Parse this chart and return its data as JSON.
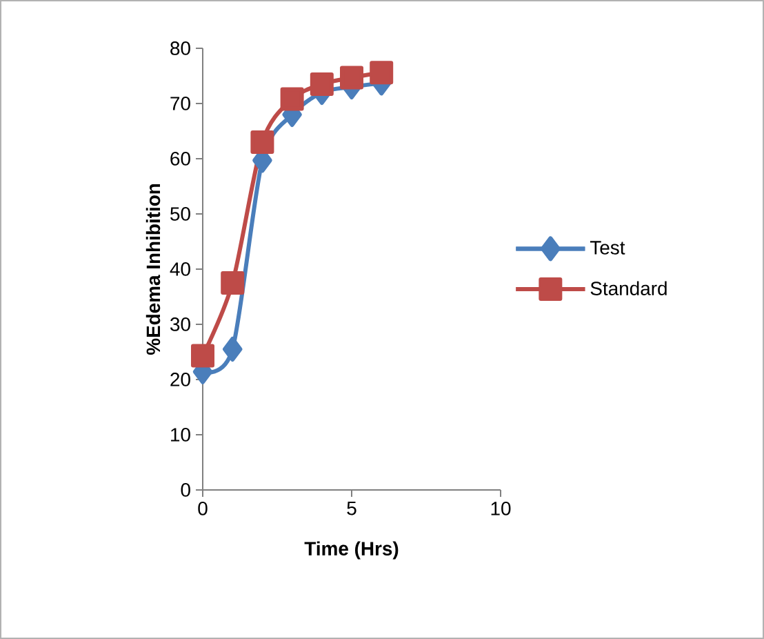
{
  "chart_data": {
    "type": "line",
    "xlabel": "Time (Hrs)",
    "ylabel": "%Edema Inhibition",
    "xlim": [
      0,
      10
    ],
    "xticks": [
      0,
      5,
      10
    ],
    "ylim": [
      0,
      80
    ],
    "yticks": [
      0,
      10,
      20,
      30,
      40,
      50,
      60,
      70,
      80
    ],
    "x": [
      0,
      1,
      2,
      3,
      4,
      5,
      6
    ],
    "grid": false,
    "legend": "right",
    "line_style": "solid",
    "series": [
      {
        "name": "Test",
        "color": "#4a7ebb",
        "marker": "diamond",
        "values": [
          21.4,
          25.5,
          59.7,
          68,
          72,
          73,
          73.7
        ]
      },
      {
        "name": "Standard",
        "color": "#be4b48",
        "marker": "square",
        "values": [
          24.3,
          37.5,
          63,
          70.8,
          73.5,
          74.7,
          75.6
        ]
      }
    ]
  }
}
